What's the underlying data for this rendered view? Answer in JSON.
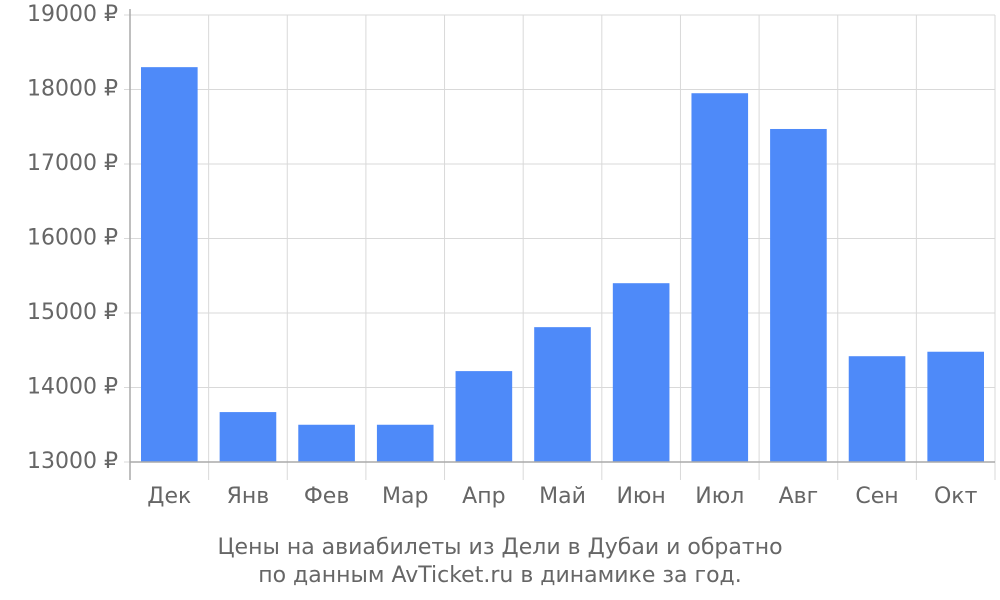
{
  "chart_data": {
    "type": "bar",
    "title": "Цены на авиабилеты из Дели в Дубаи и обратно",
    "subtitle": "по данным AvTicket.ru в динамике за год.",
    "categories": [
      "Дек",
      "Янв",
      "Фев",
      "Мар",
      "Апр",
      "Май",
      "Июн",
      "Июл",
      "Авг",
      "Сен",
      "Окт"
    ],
    "values": [
      18300,
      13670,
      13500,
      13500,
      14220,
      14810,
      15400,
      17950,
      17470,
      14420,
      14480
    ],
    "color": "#4e8af9",
    "ylim": [
      13000,
      19000
    ],
    "yticks": [
      {
        "value": 13000,
        "label": "13000 ₽"
      },
      {
        "value": 14000,
        "label": "14000 ₽"
      },
      {
        "value": 15000,
        "label": "15000 ₽"
      },
      {
        "value": 16000,
        "label": "16000 ₽"
      },
      {
        "value": 17000,
        "label": "17000 ₽"
      },
      {
        "value": 18000,
        "label": "18000 ₽"
      },
      {
        "value": 19000,
        "label": "19000 ₽"
      }
    ],
    "grid": true
  }
}
